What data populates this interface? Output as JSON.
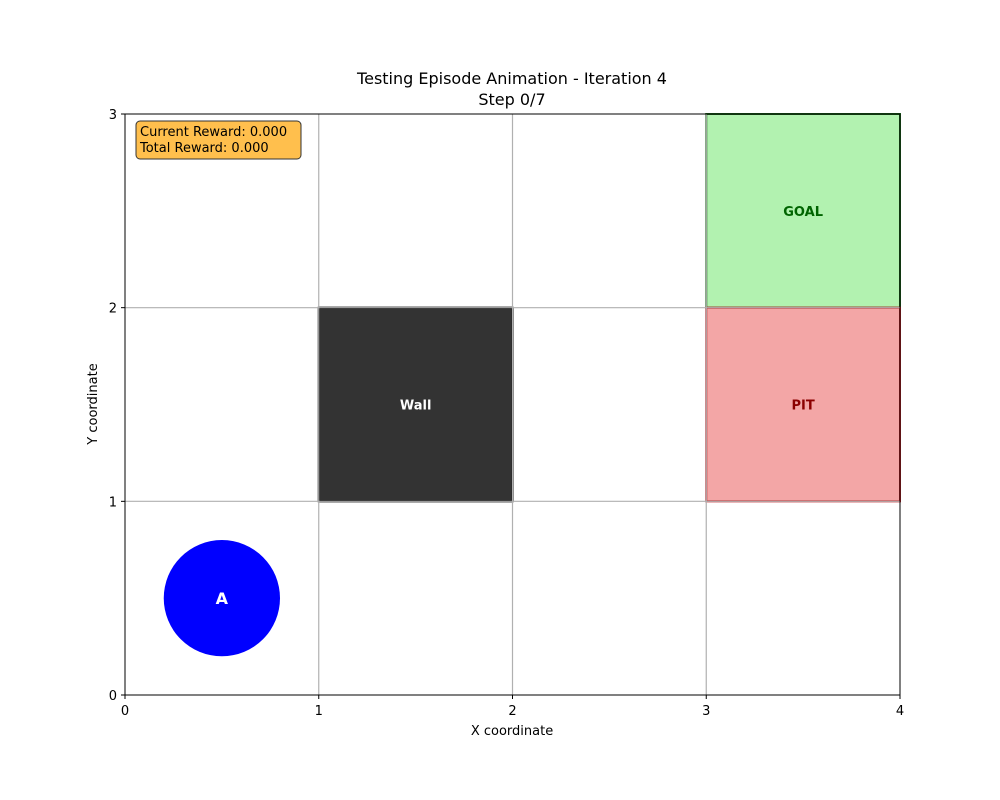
{
  "chart_data": {
    "type": "gridworld",
    "title": "Testing Episode Animation - Iteration 4",
    "subtitle": "Step 0/7",
    "xlabel": "X coordinate",
    "ylabel": "Y coordinate",
    "xlim": [
      0,
      4
    ],
    "ylim": [
      0,
      3
    ],
    "xticks": [
      "0",
      "1",
      "2",
      "3",
      "4"
    ],
    "yticks": [
      "0",
      "1",
      "2",
      "3"
    ],
    "grid": true,
    "cells": [
      {
        "id": "wall",
        "label": "Wall",
        "x": 1,
        "y": 1,
        "fill": "#333333",
        "stroke": "#000000",
        "text_color": "#ffffff"
      },
      {
        "id": "goal",
        "label": "GOAL",
        "x": 3,
        "y": 2,
        "fill": "#b2f2b0",
        "stroke": "#1f6b1f",
        "text_color": "#006400"
      },
      {
        "id": "pit",
        "label": "PIT",
        "x": 3,
        "y": 1,
        "fill": "#f3a6a6",
        "stroke": "#c0262a",
        "text_color": "#8b0000"
      }
    ],
    "agent": {
      "label": "A",
      "x": 0.5,
      "y": 0.5,
      "color": "#0000ff",
      "text_color": "#ffffff"
    },
    "info_box": {
      "line1": "Current Reward: 0.000",
      "line2": "Total Reward: 0.000",
      "color": "#ffbf4d"
    }
  }
}
